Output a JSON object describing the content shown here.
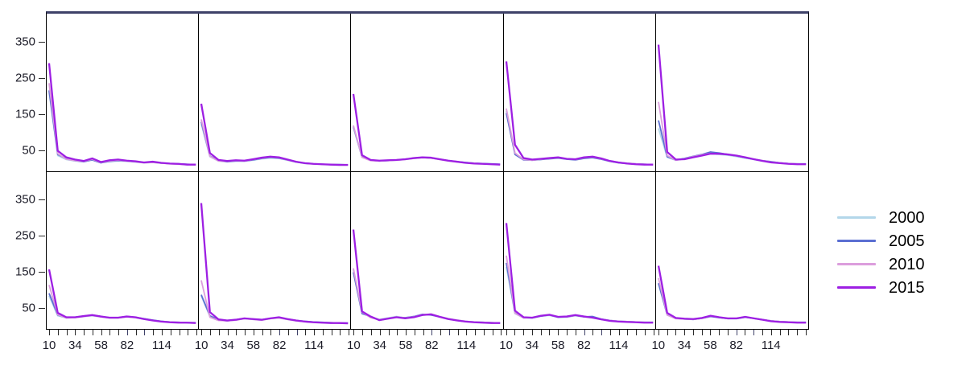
{
  "legend": {
    "items": [
      {
        "label": "2000",
        "color": "#b3d7ea"
      },
      {
        "label": "2005",
        "color": "#5b6fd2"
      },
      {
        "label": "2010",
        "color": "#dc9edd"
      },
      {
        "label": "2015",
        "color": "#9d1fe3"
      }
    ]
  },
  "chart_data": {
    "type": "line",
    "layout": "trellis 2 rows x 5 cols, shared axes",
    "x": [
      10,
      18,
      26,
      34,
      42,
      50,
      58,
      66,
      74,
      82,
      90,
      98,
      106,
      114,
      122,
      130,
      138,
      146
    ],
    "x_labeled_ticks": [
      {
        "value": "10",
        "index": 0
      },
      {
        "value": "34",
        "index": 3
      },
      {
        "value": "58",
        "index": 6
      },
      {
        "value": "82",
        "index": 9
      },
      {
        "value": "114",
        "index": 13
      }
    ],
    "yticks": [
      "50",
      "150",
      "250",
      "350"
    ],
    "ylim": [
      0,
      430
    ],
    "grid": false,
    "legend_position": "right",
    "series_names": [
      "2000",
      "2005",
      "2010",
      "2015"
    ],
    "series_colors": {
      "2000": "#b3d7ea",
      "2005": "#5b6fd2",
      "2010": "#dc9edd",
      "2015": "#9d1fe3"
    },
    "panels": [
      {
        "position": "row1-col1",
        "series": {
          "2000": [
            210,
            35,
            24,
            20,
            18,
            24,
            16,
            18,
            20,
            19,
            17,
            15,
            16,
            14,
            13,
            12,
            11,
            10
          ],
          "2005": [
            215,
            38,
            26,
            21,
            18,
            23,
            15,
            19,
            21,
            20,
            18,
            16,
            17,
            14,
            13,
            12,
            11,
            10
          ],
          "2010": [
            235,
            40,
            25,
            21,
            19,
            25,
            16,
            20,
            22,
            20,
            18,
            15,
            16,
            14,
            12,
            11,
            10,
            10
          ],
          "2015": [
            290,
            48,
            30,
            24,
            20,
            27,
            17,
            22,
            24,
            21,
            19,
            16,
            18,
            15,
            13,
            12,
            10,
            10
          ]
        }
      },
      {
        "position": "row1-col2",
        "series": {
          "2000": [
            122,
            32,
            20,
            18,
            20,
            19,
            22,
            26,
            28,
            27,
            22,
            17,
            13,
            12,
            11,
            10,
            10,
            9
          ],
          "2005": [
            128,
            34,
            21,
            18,
            20,
            20,
            23,
            27,
            30,
            28,
            23,
            17,
            14,
            12,
            11,
            10,
            10,
            9
          ],
          "2010": [
            135,
            33,
            20,
            19,
            21,
            20,
            24,
            28,
            31,
            29,
            23,
            18,
            14,
            12,
            11,
            10,
            9,
            9
          ],
          "2015": [
            178,
            42,
            23,
            20,
            22,
            21,
            25,
            29,
            32,
            30,
            24,
            18,
            14,
            12,
            11,
            10,
            9,
            9
          ]
        }
      },
      {
        "position": "row1-col3",
        "series": {
          "2000": [
            112,
            30,
            22,
            20,
            21,
            22,
            24,
            27,
            29,
            28,
            25,
            21,
            18,
            16,
            14,
            13,
            12,
            11
          ],
          "2005": [
            115,
            31,
            22,
            20,
            21,
            23,
            25,
            28,
            30,
            28,
            25,
            21,
            18,
            16,
            14,
            13,
            12,
            11
          ],
          "2010": [
            118,
            30,
            21,
            20,
            21,
            22,
            24,
            27,
            29,
            28,
            24,
            20,
            17,
            15,
            14,
            12,
            11,
            10
          ],
          "2015": [
            205,
            36,
            23,
            21,
            22,
            23,
            25,
            28,
            30,
            29,
            25,
            21,
            18,
            15,
            13,
            12,
            11,
            10
          ]
        }
      },
      {
        "position": "row1-col4",
        "series": {
          "2000": [
            158,
            40,
            24,
            22,
            24,
            27,
            29,
            26,
            24,
            28,
            30,
            26,
            20,
            16,
            14,
            12,
            11,
            10
          ],
          "2005": [
            152,
            38,
            23,
            22,
            24,
            26,
            28,
            25,
            23,
            27,
            29,
            25,
            19,
            15,
            13,
            12,
            11,
            10
          ],
          "2010": [
            165,
            42,
            24,
            22,
            25,
            27,
            29,
            26,
            24,
            29,
            31,
            26,
            20,
            16,
            14,
            12,
            11,
            10
          ],
          "2015": [
            295,
            65,
            28,
            24,
            26,
            28,
            30,
            26,
            25,
            30,
            32,
            27,
            20,
            16,
            13,
            11,
            10,
            10
          ]
        }
      },
      {
        "position": "row1-col5",
        "series": {
          "2000": [
            110,
            30,
            22,
            26,
            32,
            36,
            40,
            38,
            36,
            32,
            28,
            24,
            20,
            17,
            15,
            13,
            12,
            12
          ],
          "2005": [
            132,
            32,
            23,
            27,
            33,
            38,
            45,
            42,
            38,
            34,
            29,
            25,
            21,
            18,
            15,
            13,
            12,
            12
          ],
          "2010": [
            183,
            35,
            22,
            26,
            32,
            37,
            41,
            40,
            38,
            34,
            30,
            25,
            21,
            17,
            15,
            13,
            12,
            11
          ],
          "2015": [
            341,
            45,
            24,
            25,
            30,
            35,
            40,
            40,
            38,
            35,
            30,
            25,
            20,
            16,
            14,
            12,
            11,
            11
          ]
        }
      },
      {
        "position": "row2-col1",
        "series": {
          "2000": [
            85,
            30,
            24,
            25,
            28,
            30,
            27,
            24,
            24,
            27,
            25,
            21,
            18,
            15,
            13,
            12,
            11,
            11
          ],
          "2005": [
            92,
            32,
            25,
            26,
            29,
            32,
            28,
            25,
            25,
            28,
            26,
            22,
            18,
            15,
            13,
            12,
            11,
            11
          ],
          "2010": [
            115,
            33,
            24,
            25,
            28,
            31,
            27,
            24,
            24,
            27,
            25,
            21,
            17,
            14,
            13,
            12,
            11,
            10
          ],
          "2015": [
            158,
            38,
            26,
            26,
            29,
            32,
            28,
            25,
            25,
            28,
            26,
            21,
            17,
            14,
            12,
            11,
            11,
            10
          ]
        }
      },
      {
        "position": "row2-col2",
        "series": {
          "2000": [
            85,
            28,
            18,
            16,
            18,
            22,
            20,
            18,
            22,
            24,
            20,
            16,
            14,
            13,
            12,
            11,
            10,
            10
          ],
          "2005": [
            88,
            30,
            19,
            16,
            19,
            23,
            21,
            19,
            23,
            25,
            21,
            17,
            15,
            13,
            12,
            11,
            10,
            10
          ],
          "2010": [
            128,
            26,
            17,
            16,
            18,
            22,
            20,
            18,
            22,
            24,
            20,
            16,
            14,
            12,
            11,
            11,
            10,
            9
          ],
          "2015": [
            341,
            40,
            20,
            17,
            19,
            23,
            21,
            19,
            23,
            26,
            21,
            17,
            14,
            12,
            11,
            10,
            10,
            9
          ]
        }
      },
      {
        "position": "row2-col3",
        "series": {
          "2000": [
            158,
            38,
            26,
            20,
            24,
            28,
            24,
            26,
            32,
            34,
            28,
            22,
            18,
            15,
            13,
            12,
            11,
            10
          ],
          "2005": [
            150,
            36,
            28,
            18,
            22,
            26,
            25,
            28,
            34,
            32,
            27,
            21,
            17,
            14,
            13,
            12,
            11,
            10
          ],
          "2010": [
            161,
            40,
            25,
            19,
            23,
            27,
            24,
            27,
            33,
            35,
            28,
            22,
            18,
            15,
            13,
            12,
            11,
            10
          ],
          "2015": [
            268,
            42,
            28,
            18,
            22,
            26,
            23,
            26,
            32,
            34,
            27,
            21,
            17,
            14,
            12,
            11,
            10,
            10
          ]
        }
      },
      {
        "position": "row2-col4",
        "series": {
          "2000": [
            165,
            36,
            24,
            24,
            29,
            31,
            26,
            26,
            30,
            27,
            24,
            20,
            17,
            15,
            14,
            13,
            12,
            12
          ],
          "2005": [
            176,
            38,
            25,
            24,
            29,
            32,
            26,
            27,
            31,
            27,
            28,
            21,
            17,
            15,
            14,
            13,
            12,
            12
          ],
          "2010": [
            196,
            37,
            24,
            25,
            30,
            32,
            27,
            27,
            31,
            28,
            25,
            20,
            17,
            15,
            14,
            13,
            12,
            11
          ],
          "2015": [
            286,
            44,
            26,
            25,
            30,
            33,
            27,
            28,
            32,
            28,
            25,
            20,
            16,
            14,
            13,
            12,
            11,
            11
          ]
        }
      },
      {
        "position": "row2-col5",
        "series": {
          "2000": [
            118,
            32,
            23,
            21,
            20,
            23,
            28,
            25,
            22,
            22,
            26,
            23,
            19,
            16,
            14,
            13,
            12,
            12
          ],
          "2005": [
            120,
            33,
            23,
            21,
            20,
            23,
            28,
            25,
            22,
            22,
            26,
            23,
            19,
            16,
            14,
            13,
            12,
            12
          ],
          "2010": [
            134,
            32,
            22,
            21,
            20,
            23,
            29,
            26,
            22,
            23,
            27,
            23,
            19,
            16,
            14,
            13,
            12,
            11
          ],
          "2015": [
            168,
            38,
            24,
            22,
            21,
            24,
            30,
            26,
            23,
            23,
            27,
            23,
            19,
            15,
            13,
            12,
            11,
            11
          ]
        }
      }
    ]
  }
}
